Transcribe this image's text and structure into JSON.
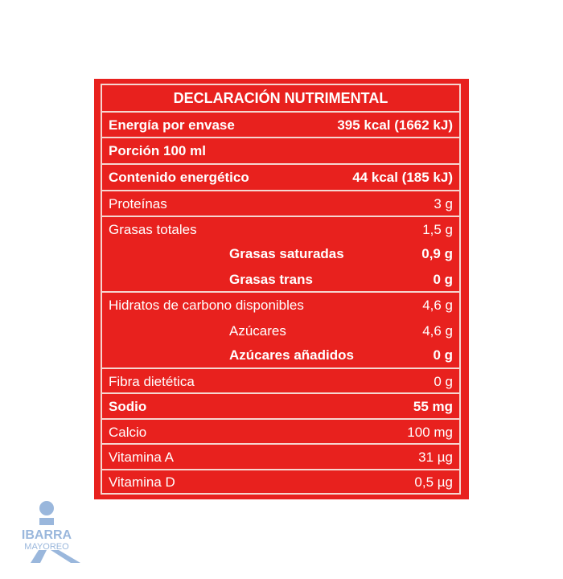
{
  "title": "DECLARACIÓN NUTRIMENTAL",
  "rows": {
    "energia": {
      "label": "Energía por envase",
      "value": "395 kcal (1662 kJ)"
    },
    "porcion": {
      "label": "Porción 100 ml"
    },
    "contenido": {
      "label": "Contenido energético",
      "value": "44 kcal (185 kJ)"
    },
    "proteinas": {
      "label": "Proteínas",
      "value": "3 g"
    },
    "grasas": {
      "label": "Grasas totales",
      "value": "1,5 g"
    },
    "saturadas": {
      "label": "Grasas saturadas",
      "value": "0,9 g"
    },
    "trans": {
      "label": "Grasas trans",
      "value": "0 g"
    },
    "hidratos": {
      "label": "Hidratos de carbono disponibles",
      "value": "4,6 g"
    },
    "azucares": {
      "label": "Azúcares",
      "value": "4,6 g"
    },
    "anadidos": {
      "label": "Azúcares añadidos",
      "value": "0 g"
    },
    "fibra": {
      "label": "Fibra dietética",
      "value": "0 g"
    },
    "sodio": {
      "label": "Sodio",
      "value": "55 mg"
    },
    "calcio": {
      "label": "Calcio",
      "value": "100 mg"
    },
    "vitA": {
      "label": "Vitamina A",
      "value": "31 µg"
    },
    "vitD": {
      "label": "Vitamina D",
      "value": "0,5 µg"
    }
  },
  "logo": {
    "line1": "IBARRA",
    "line2": "MAYOREO",
    "color": "#9ab7dc"
  },
  "colors": {
    "panel": "#e8211e",
    "text": "#ffffff"
  }
}
